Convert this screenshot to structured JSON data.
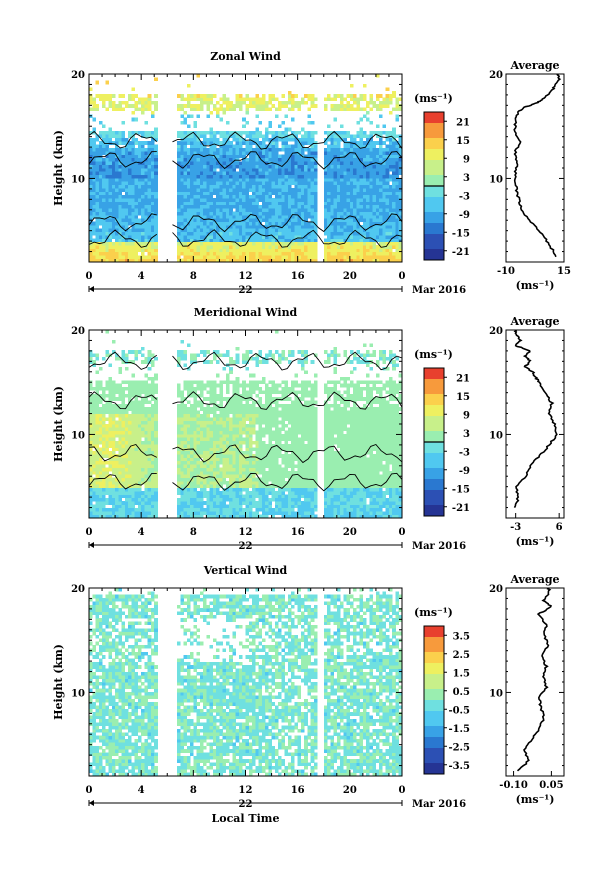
{
  "chart_data": [
    {
      "type": "heatmap",
      "title": "Zonal Wind",
      "ylabel": "Height (km)",
      "x_ticks": [
        "0",
        "4",
        "8",
        "12",
        "16",
        "20",
        "0"
      ],
      "y_ticks": [
        "20",
        "10"
      ],
      "ylim": [
        2,
        20
      ],
      "xlim": [
        0,
        24
      ],
      "date_label": "22",
      "month_label": "Mar 2016",
      "colorbar": {
        "unit": "(ms⁻¹)",
        "ticks": [
          "21",
          "15",
          "9",
          "3",
          "-3",
          "-9",
          "-15",
          "-21"
        ],
        "range": [
          -24,
          24
        ]
      },
      "data_gaps_hours": [
        [
          5.3,
          6.7
        ],
        [
          17.6,
          18.0
        ]
      ],
      "profile": {
        "title": "Average",
        "xlabel": "(ms⁻¹)",
        "x_ticks": [
          "-10",
          "15"
        ],
        "xlim": [
          -10,
          15
        ],
        "y_ticks": [
          "20",
          "10"
        ],
        "points": [
          [
            12,
            2.5
          ],
          [
            9,
            3.5
          ],
          [
            6,
            4.5
          ],
          [
            2,
            5.5
          ],
          [
            -2,
            6.5
          ],
          [
            -4,
            7.5
          ],
          [
            -5,
            8.5
          ],
          [
            -6,
            9.5
          ],
          [
            -6,
            10.5
          ],
          [
            -5,
            11.5
          ],
          [
            -6,
            12.5
          ],
          [
            -4,
            13.5
          ],
          [
            -6,
            14.5
          ],
          [
            -6,
            15.5
          ],
          [
            -5,
            16.3
          ],
          [
            -2,
            16.8
          ],
          [
            3,
            17.2
          ],
          [
            6,
            17.6
          ],
          [
            9,
            18.2
          ],
          [
            11,
            18.8
          ],
          [
            13,
            19.5
          ],
          [
            12,
            20
          ]
        ]
      }
    },
    {
      "type": "heatmap",
      "title": "Meridional Wind",
      "ylabel": "Height (km)",
      "x_ticks": [
        "0",
        "4",
        "8",
        "12",
        "16",
        "20",
        "0"
      ],
      "y_ticks": [
        "20",
        "10"
      ],
      "ylim": [
        2,
        20
      ],
      "xlim": [
        0,
        24
      ],
      "date_label": "22",
      "month_label": "Mar 2016",
      "colorbar": {
        "unit": "(ms⁻¹)",
        "ticks": [
          "21",
          "15",
          "9",
          "3",
          "-3",
          "-9",
          "-15",
          "-21"
        ],
        "range": [
          -24,
          24
        ]
      },
      "data_gaps_hours": [
        [
          5.3,
          6.7
        ],
        [
          17.6,
          18.0
        ]
      ],
      "profile": {
        "title": "Average",
        "xlabel": "(ms⁻¹)",
        "x_ticks": [
          "-3",
          "6"
        ],
        "xlim": [
          -5,
          7
        ],
        "y_ticks": [
          "20",
          "10"
        ],
        "points": [
          [
            -3,
            3
          ],
          [
            -2.5,
            4
          ],
          [
            -3,
            5
          ],
          [
            -1,
            6
          ],
          [
            0,
            7
          ],
          [
            2,
            8
          ],
          [
            4,
            9
          ],
          [
            5.5,
            10
          ],
          [
            5,
            11
          ],
          [
            4,
            12
          ],
          [
            4.5,
            13
          ],
          [
            3,
            14
          ],
          [
            2,
            15
          ],
          [
            1,
            15.5
          ],
          [
            0.5,
            16
          ],
          [
            -1,
            16.5
          ],
          [
            0,
            17
          ],
          [
            -1,
            17.5
          ],
          [
            0,
            18
          ],
          [
            -3,
            18.5
          ],
          [
            -2,
            19
          ],
          [
            -3,
            19.6
          ],
          [
            -3,
            20
          ]
        ]
      }
    },
    {
      "type": "heatmap",
      "title": "Vertical Wind",
      "ylabel": "Height (km)",
      "xlabel": "Local Time",
      "x_ticks": [
        "0",
        "4",
        "8",
        "12",
        "16",
        "20",
        "0"
      ],
      "y_ticks": [
        "20",
        "10"
      ],
      "ylim": [
        2,
        20
      ],
      "xlim": [
        0,
        24
      ],
      "date_label": "22",
      "month_label": "Mar 2016",
      "colorbar": {
        "unit": "(ms⁻¹)",
        "ticks": [
          "3.5",
          "2.5",
          "1.5",
          "0.5",
          "-0.5",
          "-1.5",
          "-2.5",
          "-3.5"
        ],
        "range": [
          -4,
          4
        ]
      },
      "data_gaps_hours": [
        [
          5.3,
          6.7
        ],
        [
          17.6,
          18.0
        ]
      ],
      "profile": {
        "title": "Average",
        "xlabel": "(ms⁻¹)",
        "x_ticks": [
          "-0.10",
          "0.05"
        ],
        "xlim": [
          -0.13,
          0.1
        ],
        "y_ticks": [
          "20",
          "10"
        ],
        "points": [
          [
            -0.08,
            2.5
          ],
          [
            -0.04,
            3.5
          ],
          [
            -0.06,
            4.5
          ],
          [
            -0.03,
            5.5
          ],
          [
            0.0,
            6.5
          ],
          [
            0.02,
            7.5
          ],
          [
            0.01,
            8.5
          ],
          [
            0.0,
            9.5
          ],
          [
            0.03,
            10.5
          ],
          [
            0.02,
            11.5
          ],
          [
            0.03,
            12.5
          ],
          [
            0.01,
            13.5
          ],
          [
            0.04,
            14.5
          ],
          [
            0.02,
            15.5
          ],
          [
            0.03,
            16.5
          ],
          [
            0.0,
            17.5
          ],
          [
            0.05,
            18.2
          ],
          [
            0.02,
            18.8
          ],
          [
            0.04,
            19.5
          ],
          [
            0.04,
            20
          ]
        ]
      }
    }
  ]
}
